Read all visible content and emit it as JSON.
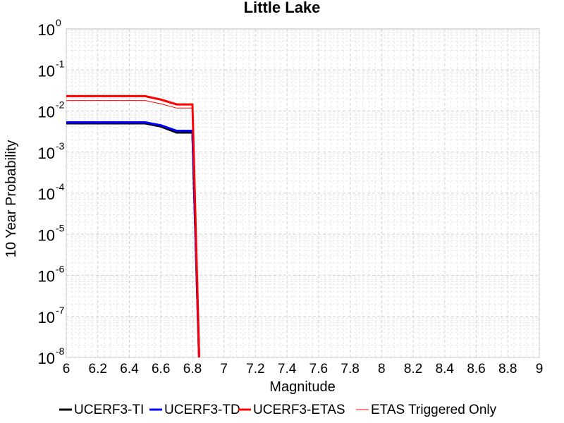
{
  "chart_data": {
    "type": "line",
    "title": "Little Lake",
    "xlabel": "Magnitude",
    "ylabel": "10 Year Probability",
    "xlim": [
      6,
      9
    ],
    "ylim": [
      1e-08,
      1
    ],
    "yscale": "log",
    "grid": true,
    "legend_position": "bottom",
    "x_ticks": [
      "6",
      "6.2",
      "6.4",
      "6.6",
      "6.8",
      "7",
      "7.2",
      "7.4",
      "7.6",
      "7.8",
      "8",
      "8.2",
      "8.4",
      "8.6",
      "8.8",
      "9"
    ],
    "y_ticks": [
      {
        "base": "10",
        "exp": "0"
      },
      {
        "base": "10",
        "exp": "-1"
      },
      {
        "base": "10",
        "exp": "-2"
      },
      {
        "base": "10",
        "exp": "-3"
      },
      {
        "base": "10",
        "exp": "-4"
      },
      {
        "base": "10",
        "exp": "-5"
      },
      {
        "base": "10",
        "exp": "-6"
      },
      {
        "base": "10",
        "exp": "-7"
      },
      {
        "base": "10",
        "exp": "-8"
      }
    ],
    "series": [
      {
        "name": "UCERF3-TI",
        "color": "#000000",
        "width": 3,
        "points": [
          [
            6.0,
            0.005
          ],
          [
            6.5,
            0.005
          ],
          [
            6.6,
            0.0042
          ],
          [
            6.7,
            0.003
          ],
          [
            6.8,
            0.003
          ],
          [
            6.85,
            1e-09
          ]
        ]
      },
      {
        "name": "UCERF3-TD",
        "color": "#0000ff",
        "width": 3,
        "points": [
          [
            6.0,
            0.0053
          ],
          [
            6.5,
            0.0053
          ],
          [
            6.6,
            0.0045
          ],
          [
            6.7,
            0.0033
          ],
          [
            6.8,
            0.0033
          ],
          [
            6.85,
            1e-09
          ]
        ]
      },
      {
        "name": "UCERF3-ETAS",
        "color": "#ff0000",
        "width": 3,
        "points": [
          [
            6.0,
            0.023
          ],
          [
            6.5,
            0.023
          ],
          [
            6.6,
            0.019
          ],
          [
            6.7,
            0.0145
          ],
          [
            6.8,
            0.0145
          ],
          [
            6.85,
            1e-09
          ]
        ]
      },
      {
        "name": "ETAS Triggered Only",
        "color": "#ff0000",
        "width": 1,
        "points": [
          [
            6.0,
            0.018
          ],
          [
            6.5,
            0.018
          ],
          [
            6.6,
            0.015
          ],
          [
            6.7,
            0.0118
          ],
          [
            6.8,
            0.0118
          ],
          [
            6.85,
            1e-09
          ]
        ]
      }
    ]
  }
}
